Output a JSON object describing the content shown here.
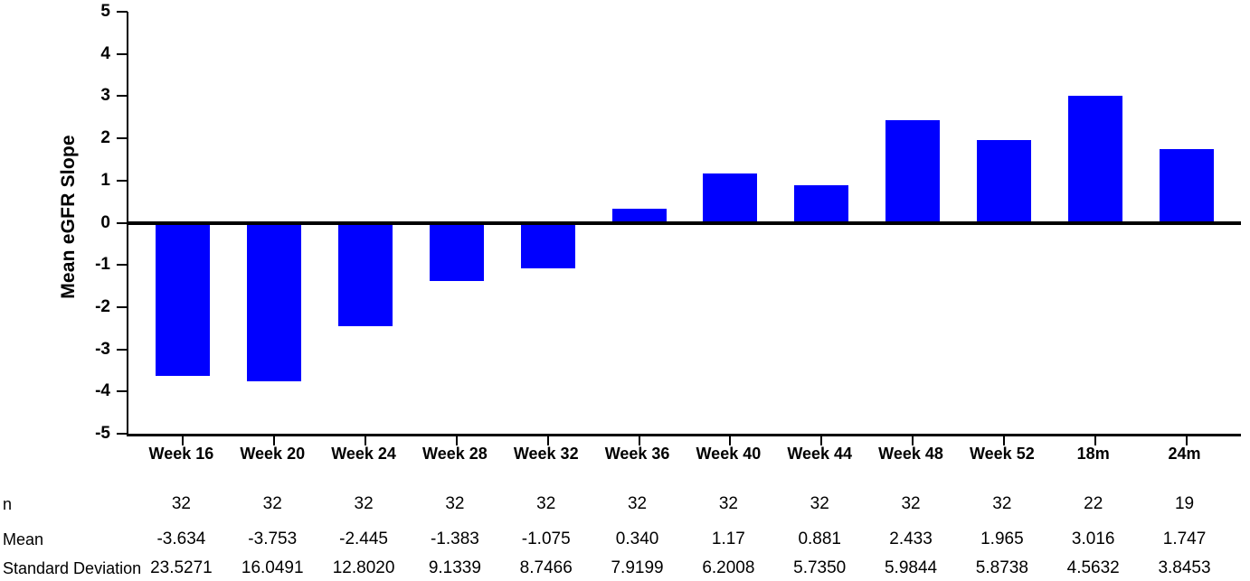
{
  "figure": {
    "background": "#ffffff",
    "text_color": "#000000",
    "axis_color": "#000000"
  },
  "chart_data": {
    "type": "bar",
    "title": "",
    "xlabel": "",
    "ylabel": "Mean eGFR Slope",
    "ylim": [
      -5,
      5
    ],
    "ytick_step": 1,
    "ytick_labels": [
      "5",
      "4",
      "3",
      "2",
      "1",
      "0",
      "-1",
      "-2",
      "-3",
      "-4",
      "-5"
    ],
    "grid": false,
    "legend_position": "none",
    "bar_color": "#0000ff",
    "categories": [
      "Week 16",
      "Week 20",
      "Week 24",
      "Week 28",
      "Week 32",
      "Week 36",
      "Week 40",
      "Week 44",
      "Week 48",
      "Week 52",
      "18m",
      "24m"
    ],
    "series": [
      {
        "name": "Mean eGFR Slope",
        "values": [
          -3.634,
          -3.753,
          -2.445,
          -1.383,
          -1.075,
          0.34,
          1.17,
          0.881,
          2.433,
          1.965,
          3.016,
          1.747
        ]
      }
    ]
  },
  "table": {
    "rows": [
      {
        "label": "n",
        "values": [
          "32",
          "32",
          "32",
          "32",
          "32",
          "32",
          "32",
          "32",
          "32",
          "32",
          "22",
          "19"
        ]
      },
      {
        "label": "Mean",
        "values": [
          "-3.634",
          "-3.753",
          "-2.445",
          "-1.383",
          "-1.075",
          "0.340",
          "1.17",
          "0.881",
          "2.433",
          "1.965",
          "3.016",
          "1.747"
        ]
      },
      {
        "label": "Standard Deviation",
        "values": [
          "23.5271",
          "16.0491",
          "12.8020",
          "9.1339",
          "8.7466",
          "7.9199",
          "6.2008",
          "5.7350",
          "5.9844",
          "5.8738",
          "4.5632",
          "3.8453"
        ]
      }
    ]
  }
}
